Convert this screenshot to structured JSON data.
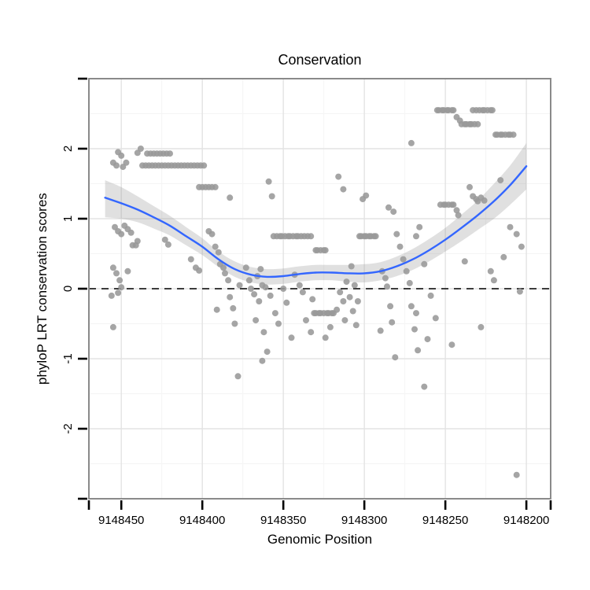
{
  "chart_data": {
    "type": "scatter",
    "title": "Conservation",
    "xlabel": "Genomic Position",
    "ylabel": "phyloP LRT conservation scores",
    "x_axis_reversed": true,
    "xlim": [
      9148470,
      9148185
    ],
    "ylim": [
      -3,
      3
    ],
    "grid": true,
    "legend": "none",
    "x_ticks": [
      9148450,
      9148400,
      9148350,
      9148300,
      9148250,
      9148200
    ],
    "x_tick_labels": [
      "9148450",
      "9148400",
      "9148350",
      "9148300",
      "9148250",
      "9148200"
    ],
    "x_minor_ticks": [
      9148425,
      9148375,
      9148325,
      9148275,
      9148225
    ],
    "y_ticks": [
      -2,
      -1,
      0,
      1,
      2
    ],
    "y_tick_labels": [
      "-2",
      "-1",
      "0",
      "1",
      "2"
    ],
    "y_minor_ticks": [
      -2.5,
      -1.5,
      -0.5,
      0.5,
      1.5,
      2.5
    ],
    "zero_line_y": 0,
    "colors": {
      "points": "#999999",
      "smooth_line": "#3366FF",
      "ribbon": "#999999",
      "ribbon_opacity": 0.3,
      "panel_border": "#8A8A8A",
      "grid_major": "#E3E3E3",
      "grid_minor": "#F4F4F4",
      "dashed_line": "#000000",
      "tick": "#000000",
      "text": "#000000"
    },
    "smooth": {
      "x": [
        9148460,
        9148450,
        9148440,
        9148430,
        9148420,
        9148410,
        9148400,
        9148390,
        9148380,
        9148370,
        9148360,
        9148350,
        9148340,
        9148330,
        9148320,
        9148310,
        9148300,
        9148290,
        9148280,
        9148270,
        9148260,
        9148250,
        9148240,
        9148230,
        9148220,
        9148210,
        9148200
      ],
      "fit": [
        1.3,
        1.22,
        1.13,
        1.02,
        0.9,
        0.75,
        0.6,
        0.42,
        0.28,
        0.2,
        0.17,
        0.18,
        0.21,
        0.23,
        0.23,
        0.22,
        0.22,
        0.25,
        0.32,
        0.42,
        0.55,
        0.7,
        0.87,
        1.05,
        1.25,
        1.48,
        1.75
      ],
      "lower": [
        1.02,
        1.0,
        0.95,
        0.86,
        0.76,
        0.62,
        0.48,
        0.31,
        0.17,
        0.09,
        0.06,
        0.07,
        0.1,
        0.12,
        0.12,
        0.1,
        0.09,
        0.12,
        0.18,
        0.27,
        0.39,
        0.53,
        0.68,
        0.84,
        1.0,
        1.2,
        1.42
      ],
      "upper": [
        1.55,
        1.45,
        1.32,
        1.18,
        1.04,
        0.88,
        0.72,
        0.53,
        0.39,
        0.31,
        0.28,
        0.29,
        0.32,
        0.34,
        0.34,
        0.34,
        0.35,
        0.38,
        0.46,
        0.57,
        0.71,
        0.87,
        1.06,
        1.26,
        1.5,
        1.76,
        2.08
      ]
    },
    "points": [
      [
        9148455,
        1.8
      ],
      [
        9148453,
        1.76
      ],
      [
        9148452,
        1.95
      ],
      [
        9148450,
        1.9
      ],
      [
        9148449,
        1.74
      ],
      [
        9148447,
        1.8
      ],
      [
        9148454,
        0.88
      ],
      [
        9148452,
        0.82
      ],
      [
        9148450,
        0.78
      ],
      [
        9148448,
        0.9
      ],
      [
        9148446,
        0.85
      ],
      [
        9148444,
        0.8
      ],
      [
        9148443,
        0.62
      ],
      [
        9148446,
        0.25
      ],
      [
        9148455,
        0.3
      ],
      [
        9148453,
        0.22
      ],
      [
        9148451,
        0.12
      ],
      [
        9148450,
        0.02
      ],
      [
        9148452,
        -0.06
      ],
      [
        9148456,
        -0.1
      ],
      [
        9148455,
        -0.55
      ],
      [
        9148441,
        0.62
      ],
      [
        9148440,
        0.68
      ],
      [
        9148440,
        1.94
      ],
      [
        9148438,
        2.0
      ],
      [
        9148434,
        1.93
      ],
      [
        9148432,
        1.93
      ],
      [
        9148430,
        1.93
      ],
      [
        9148428,
        1.93
      ],
      [
        9148426,
        1.93
      ],
      [
        9148424,
        1.93
      ],
      [
        9148422,
        1.93
      ],
      [
        9148420,
        1.93
      ],
      [
        9148437,
        1.76
      ],
      [
        9148435,
        1.76
      ],
      [
        9148433,
        1.76
      ],
      [
        9148431,
        1.76
      ],
      [
        9148429,
        1.76
      ],
      [
        9148427,
        1.76
      ],
      [
        9148425,
        1.76
      ],
      [
        9148423,
        1.76
      ],
      [
        9148421,
        1.76
      ],
      [
        9148419,
        1.76
      ],
      [
        9148417,
        1.76
      ],
      [
        9148415,
        1.76
      ],
      [
        9148413,
        1.76
      ],
      [
        9148411,
        1.76
      ],
      [
        9148409,
        1.76
      ],
      [
        9148407,
        1.76
      ],
      [
        9148405,
        1.76
      ],
      [
        9148403,
        1.76
      ],
      [
        9148401,
        1.76
      ],
      [
        9148399,
        1.76
      ],
      [
        9148402,
        1.45
      ],
      [
        9148400,
        1.45
      ],
      [
        9148398,
        1.45
      ],
      [
        9148396,
        1.45
      ],
      [
        9148394,
        1.45
      ],
      [
        9148392,
        1.45
      ],
      [
        9148423,
        0.7
      ],
      [
        9148421,
        0.63
      ],
      [
        9148407,
        0.42
      ],
      [
        9148404,
        0.3
      ],
      [
        9148402,
        0.26
      ],
      [
        9148396,
        0.82
      ],
      [
        9148394,
        0.78
      ],
      [
        9148392,
        0.6
      ],
      [
        9148390,
        0.52
      ],
      [
        9148389,
        0.35
      ],
      [
        9148387,
        0.3
      ],
      [
        9148386,
        0.22
      ],
      [
        9148384,
        0.12
      ],
      [
        9148391,
        -0.3
      ],
      [
        9148383,
        -0.12
      ],
      [
        9148381,
        -0.28
      ],
      [
        9148380,
        -0.5
      ],
      [
        9148378,
        -1.25
      ],
      [
        9148377,
        0.05
      ],
      [
        9148383,
        1.3
      ],
      [
        9148373,
        0.3
      ],
      [
        9148371,
        0.12
      ],
      [
        9148370,
        0.0
      ],
      [
        9148368,
        -0.08
      ],
      [
        9148366,
        0.18
      ],
      [
        9148365,
        -0.18
      ],
      [
        9148363,
        0.05
      ],
      [
        9148364,
        0.28
      ],
      [
        9148361,
        0.02
      ],
      [
        9148362,
        -0.62
      ],
      [
        9148360,
        -0.9
      ],
      [
        9148367,
        -0.45
      ],
      [
        9148363,
        -1.03
      ],
      [
        9148359,
        1.53
      ],
      [
        9148357,
        1.32
      ],
      [
        9148356,
        0.75
      ],
      [
        9148354,
        0.75
      ],
      [
        9148352,
        0.75
      ],
      [
        9148351,
        0.75
      ],
      [
        9148349,
        0.75
      ],
      [
        9148347,
        0.75
      ],
      [
        9148346,
        0.75
      ],
      [
        9148344,
        0.75
      ],
      [
        9148342,
        0.75
      ],
      [
        9148341,
        0.75
      ],
      [
        9148339,
        0.75
      ],
      [
        9148337,
        0.75
      ],
      [
        9148335,
        0.75
      ],
      [
        9148333,
        0.75
      ],
      [
        9148358,
        -0.1
      ],
      [
        9148355,
        -0.35
      ],
      [
        9148353,
        -0.5
      ],
      [
        9148350,
        0.0
      ],
      [
        9148348,
        -0.2
      ],
      [
        9148345,
        -0.7
      ],
      [
        9148343,
        0.2
      ],
      [
        9148340,
        0.05
      ],
      [
        9148338,
        -0.05
      ],
      [
        9148336,
        -0.45
      ],
      [
        9148333,
        -0.62
      ],
      [
        9148332,
        -0.15
      ],
      [
        9148324,
        -0.7
      ],
      [
        9148331,
        -0.35
      ],
      [
        9148330,
        -0.35
      ],
      [
        9148328,
        -0.35
      ],
      [
        9148327,
        -0.35
      ],
      [
        9148325,
        -0.35
      ],
      [
        9148323,
        -0.35
      ],
      [
        9148322,
        -0.35
      ],
      [
        9148320,
        -0.35
      ],
      [
        9148319,
        -0.35
      ],
      [
        9148321,
        -0.55
      ],
      [
        9148317,
        -0.3
      ],
      [
        9148330,
        0.55
      ],
      [
        9148329,
        0.55
      ],
      [
        9148327,
        0.55
      ],
      [
        9148325,
        0.55
      ],
      [
        9148324,
        0.55
      ],
      [
        9148316,
        1.6
      ],
      [
        9148313,
        1.42
      ],
      [
        9148315,
        -0.05
      ],
      [
        9148313,
        -0.18
      ],
      [
        9148311,
        0.1
      ],
      [
        9148309,
        -0.12
      ],
      [
        9148308,
        0.32
      ],
      [
        9148307,
        -0.32
      ],
      [
        9148306,
        0.05
      ],
      [
        9148305,
        -0.52
      ],
      [
        9148304,
        -0.18
      ],
      [
        9148312,
        -0.45
      ],
      [
        9148303,
        0.75
      ],
      [
        9148302,
        0.75
      ],
      [
        9148300,
        0.75
      ],
      [
        9148299,
        0.75
      ],
      [
        9148297,
        0.75
      ],
      [
        9148296,
        0.75
      ],
      [
        9148294,
        0.75
      ],
      [
        9148293,
        0.75
      ],
      [
        9148301,
        1.28
      ],
      [
        9148299,
        1.33
      ],
      [
        9148289,
        0.25
      ],
      [
        9148287,
        0.15
      ],
      [
        9148286,
        0.03
      ],
      [
        9148285,
        1.16
      ],
      [
        9148284,
        -0.25
      ],
      [
        9148283,
        -0.48
      ],
      [
        9148282,
        1.1
      ],
      [
        9148281,
        -0.98
      ],
      [
        9148290,
        -0.6
      ],
      [
        9148280,
        0.78
      ],
      [
        9148278,
        0.6
      ],
      [
        9148276,
        0.42
      ],
      [
        9148274,
        0.25
      ],
      [
        9148272,
        0.08
      ],
      [
        9148271,
        -0.25
      ],
      [
        9148269,
        -0.58
      ],
      [
        9148267,
        -0.88
      ],
      [
        9148268,
        -0.35
      ],
      [
        9148271,
        2.08
      ],
      [
        9148268,
        0.75
      ],
      [
        9148266,
        0.88
      ],
      [
        9148263,
        0.35
      ],
      [
        9148261,
        -0.72
      ],
      [
        9148263,
        -1.4
      ],
      [
        9148259,
        -0.1
      ],
      [
        9148256,
        -0.42
      ],
      [
        9148255,
        2.55
      ],
      [
        9148254,
        2.55
      ],
      [
        9148252,
        2.55
      ],
      [
        9148251,
        2.55
      ],
      [
        9148249,
        2.55
      ],
      [
        9148248,
        2.55
      ],
      [
        9148246,
        2.55
      ],
      [
        9148245,
        2.55
      ],
      [
        9148243,
        2.45
      ],
      [
        9148241,
        2.4
      ],
      [
        9148240,
        2.35
      ],
      [
        9148238,
        2.35
      ],
      [
        9148237,
        2.35
      ],
      [
        9148235,
        2.35
      ],
      [
        9148234,
        2.35
      ],
      [
        9148232,
        2.35
      ],
      [
        9148230,
        2.35
      ],
      [
        9148233,
        2.55
      ],
      [
        9148231,
        2.55
      ],
      [
        9148229,
        2.55
      ],
      [
        9148227,
        2.55
      ],
      [
        9148226,
        2.55
      ],
      [
        9148224,
        2.55
      ],
      [
        9148222,
        2.55
      ],
      [
        9148221,
        2.55
      ],
      [
        9148219,
        2.2
      ],
      [
        9148218,
        2.2
      ],
      [
        9148216,
        2.2
      ],
      [
        9148215,
        2.2
      ],
      [
        9148213,
        2.2
      ],
      [
        9148211,
        2.2
      ],
      [
        9148210,
        2.2
      ],
      [
        9148208,
        2.2
      ],
      [
        9148253,
        1.2
      ],
      [
        9148251,
        1.2
      ],
      [
        9148250,
        1.2
      ],
      [
        9148248,
        1.2
      ],
      [
        9148246,
        1.2
      ],
      [
        9148245,
        1.2
      ],
      [
        9148243,
        1.12
      ],
      [
        9148242,
        1.05
      ],
      [
        9148235,
        1.45
      ],
      [
        9148233,
        1.32
      ],
      [
        9148231,
        1.28
      ],
      [
        9148230,
        1.25
      ],
      [
        9148228,
        1.3
      ],
      [
        9148226,
        1.26
      ],
      [
        9148246,
        -0.8
      ],
      [
        9148228,
        -0.55
      ],
      [
        9148238,
        0.39
      ],
      [
        9148222,
        0.25
      ],
      [
        9148220,
        0.12
      ],
      [
        9148216,
        1.55
      ],
      [
        9148214,
        0.45
      ],
      [
        9148210,
        0.88
      ],
      [
        9148206,
        0.78
      ],
      [
        9148203,
        0.6
      ],
      [
        9148204,
        -0.04
      ],
      [
        9148206,
        -2.66
      ]
    ]
  }
}
